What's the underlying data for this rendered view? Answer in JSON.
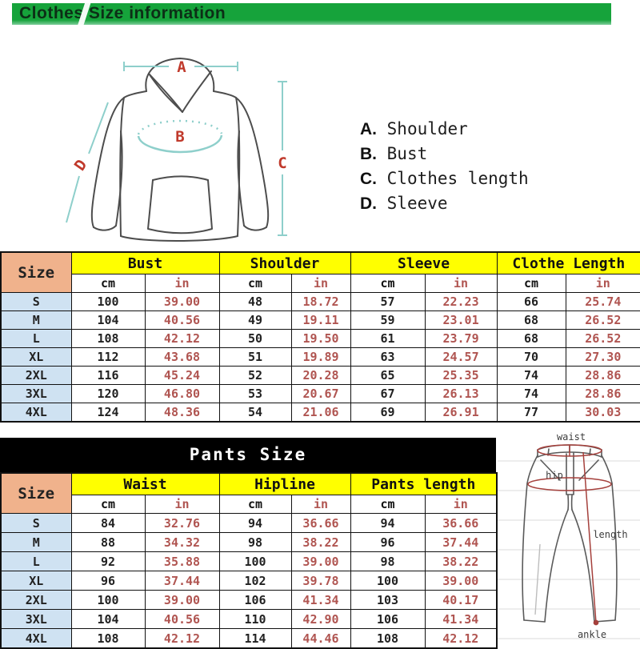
{
  "title": "Clothes Size information",
  "legend": {
    "items": [
      {
        "key": "A.",
        "label": "Shoulder"
      },
      {
        "key": "B.",
        "label": "Bust"
      },
      {
        "key": "C.",
        "label": "Clothes length"
      },
      {
        "key": "D.",
        "label": "Sleeve"
      }
    ]
  },
  "hoodie_diagram": {
    "labels": {
      "a": "A",
      "b": "B",
      "c": "C",
      "d": "D"
    }
  },
  "pants_diagram": {
    "labels": {
      "waist": "waist",
      "hip": "hip",
      "length": "length",
      "ankle": "ankle"
    }
  },
  "shirt_table": {
    "size_header": "Size",
    "units": {
      "cm": "cm",
      "in": "in"
    },
    "groups": [
      "Bust",
      "Shoulder",
      "Sleeve",
      "Clothe Length"
    ],
    "rows": [
      {
        "size": "S",
        "values": [
          "100",
          "39.00",
          "48",
          "18.72",
          "57",
          "22.23",
          "66",
          "25.74"
        ]
      },
      {
        "size": "M",
        "values": [
          "104",
          "40.56",
          "49",
          "19.11",
          "59",
          "23.01",
          "68",
          "26.52"
        ]
      },
      {
        "size": "L",
        "values": [
          "108",
          "42.12",
          "50",
          "19.50",
          "61",
          "23.79",
          "68",
          "26.52"
        ]
      },
      {
        "size": "XL",
        "values": [
          "112",
          "43.68",
          "51",
          "19.89",
          "63",
          "24.57",
          "70",
          "27.30"
        ]
      },
      {
        "size": "2XL",
        "values": [
          "116",
          "45.24",
          "52",
          "20.28",
          "65",
          "25.35",
          "74",
          "28.86"
        ]
      },
      {
        "size": "3XL",
        "values": [
          "120",
          "46.80",
          "53",
          "20.67",
          "67",
          "26.13",
          "74",
          "28.86"
        ]
      },
      {
        "size": "4XL",
        "values": [
          "124",
          "48.36",
          "54",
          "21.06",
          "69",
          "26.91",
          "77",
          "30.03"
        ]
      }
    ]
  },
  "pants_table": {
    "title": "Pants Size",
    "size_header": "Size",
    "units": {
      "cm": "cm",
      "in": "in"
    },
    "groups": [
      "Waist",
      "Hipline",
      "Pants length"
    ],
    "rows": [
      {
        "size": "S",
        "values": [
          "84",
          "32.76",
          "94",
          "36.66",
          "94",
          "36.66"
        ]
      },
      {
        "size": "M",
        "values": [
          "88",
          "34.32",
          "98",
          "38.22",
          "96",
          "37.44"
        ]
      },
      {
        "size": "L",
        "values": [
          "92",
          "35.88",
          "100",
          "39.00",
          "98",
          "38.22"
        ]
      },
      {
        "size": "XL",
        "values": [
          "96",
          "37.44",
          "102",
          "39.78",
          "100",
          "39.00"
        ]
      },
      {
        "size": "2XL",
        "values": [
          "100",
          "39.00",
          "106",
          "41.34",
          "103",
          "40.17"
        ]
      },
      {
        "size": "3XL",
        "values": [
          "104",
          "40.56",
          "110",
          "42.90",
          "106",
          "41.34"
        ]
      },
      {
        "size": "4XL",
        "values": [
          "108",
          "42.12",
          "114",
          "44.46",
          "108",
          "42.12"
        ]
      }
    ]
  },
  "colors": {
    "header_green": "#16a33b",
    "header_text": "#0c2f16",
    "size_header_peach": "#f0b28c",
    "group_header_yellow": "#ffff00",
    "size_cell_blue": "#cfe2f2",
    "inch_value_red": "#b05551",
    "measure_teal": "#8ecfcb",
    "diagram_label_red": "#c0392b",
    "pants_measure_red": "#a5403c",
    "banner_black": "#000000"
  }
}
